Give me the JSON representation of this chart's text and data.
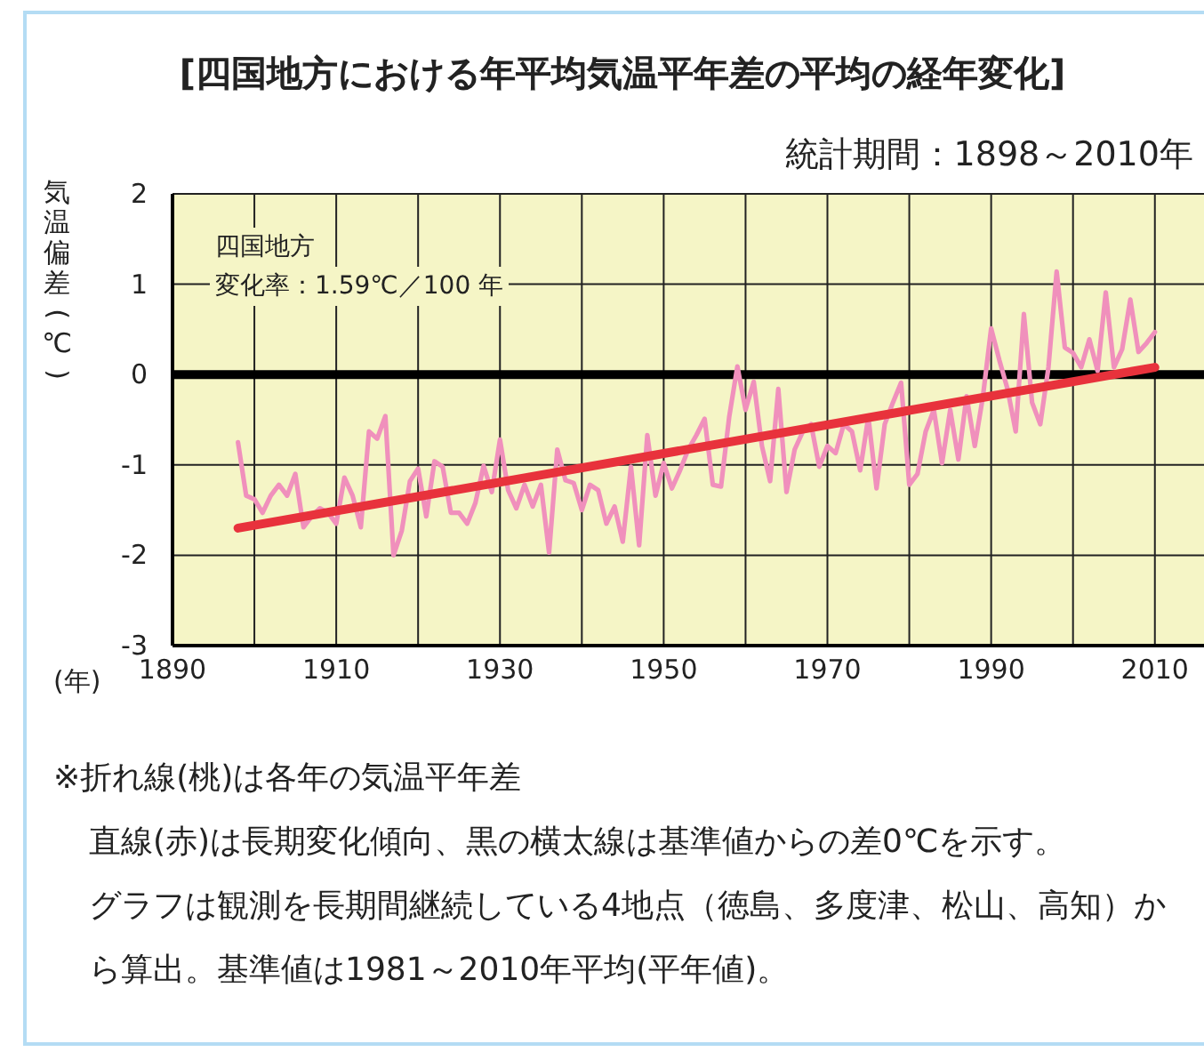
{
  "chart_data": {
    "type": "line",
    "title": "[四国地方における年平均気温平年差の平均の経年変化]",
    "subtitle": "統計期間：1898～2010年",
    "ylabel": "気温偏差(℃)",
    "xlabel": "(年)",
    "series": [
      {
        "color": "#f090bc",
        "x": [
          1898,
          1899,
          1900,
          1901,
          1902,
          1903,
          1904,
          1905,
          1906,
          1907,
          1908,
          1909,
          1910,
          1911,
          1912,
          1913,
          1914,
          1915,
          1916,
          1917,
          1918,
          1919,
          1920,
          1921,
          1922,
          1923,
          1924,
          1925,
          1926,
          1927,
          1928,
          1929,
          1930,
          1931,
          1932,
          1933,
          1934,
          1935,
          1936,
          1937,
          1938,
          1939,
          1940,
          1941,
          1942,
          1943,
          1944,
          1945,
          1946,
          1947,
          1948,
          1949,
          1950,
          1951,
          1952,
          1953,
          1954,
          1955,
          1956,
          1957,
          1958,
          1959,
          1960,
          1961,
          1962,
          1963,
          1964,
          1965,
          1966,
          1967,
          1968,
          1969,
          1970,
          1971,
          1972,
          1973,
          1974,
          1975,
          1976,
          1977,
          1978,
          1979,
          1980,
          1981,
          1982,
          1983,
          1984,
          1985,
          1986,
          1987,
          1988,
          1989,
          1990,
          1991,
          1992,
          1993,
          1994,
          1995,
          1996,
          1997,
          1998,
          1999,
          2000,
          2001,
          2002,
          2003,
          2004,
          2005,
          2006,
          2007,
          2008,
          2009,
          2010
        ],
        "values": [
          -0.75,
          -1.34,
          -1.38,
          -1.53,
          -1.34,
          -1.22,
          -1.34,
          -1.1,
          -1.69,
          -1.57,
          -1.48,
          -1.53,
          -1.65,
          -1.14,
          -1.34,
          -1.69,
          -0.63,
          -0.71,
          -0.46,
          -2.0,
          -1.73,
          -1.18,
          -1.04,
          -1.57,
          -0.96,
          -1.02,
          -1.53,
          -1.53,
          -1.65,
          -1.42,
          -1.01,
          -1.3,
          -0.72,
          -1.28,
          -1.48,
          -1.22,
          -1.46,
          -1.22,
          -1.97,
          -0.83,
          -1.17,
          -1.2,
          -1.5,
          -1.22,
          -1.28,
          -1.65,
          -1.46,
          -1.85,
          -1.02,
          -1.89,
          -0.67,
          -1.34,
          -0.98,
          -1.26,
          -1.06,
          -0.83,
          -0.67,
          -0.49,
          -1.22,
          -1.24,
          -0.47,
          0.09,
          -0.39,
          -0.08,
          -0.79,
          -1.18,
          -0.16,
          -1.3,
          -0.83,
          -0.63,
          -0.55,
          -1.02,
          -0.79,
          -0.87,
          -0.55,
          -0.63,
          -1.06,
          -0.47,
          -1.26,
          -0.55,
          -0.31,
          -0.09,
          -1.22,
          -1.1,
          -0.63,
          -0.39,
          -0.98,
          -0.39,
          -0.94,
          -0.24,
          -0.79,
          -0.24,
          0.51,
          0.16,
          -0.16,
          -0.63,
          0.67,
          -0.31,
          -0.55,
          0.08,
          1.14,
          0.3,
          0.24,
          0.08,
          0.39,
          0.04,
          0.91,
          0.08,
          0.28,
          0.83,
          0.25,
          0.35,
          0.47
        ]
      },
      {
        "color": "#e8323c",
        "x": [
          1898,
          2010
        ],
        "values": [
          -1.7,
          0.08
        ]
      }
    ],
    "xlim": [
      1890,
      2016
    ],
    "xticks": [
      1890,
      {
        "value": 1900,
        "label": null
      },
      1910,
      {
        "value": 1920,
        "label": null
      },
      1930,
      {
        "value": 1940,
        "label": null
      },
      1950,
      {
        "value": 1960,
        "label": null
      },
      1970,
      {
        "value": 1980,
        "label": null
      },
      1990,
      {
        "value": 2000,
        "label": null
      },
      2010
    ],
    "ylim": [
      -3,
      2
    ],
    "yticks": [
      -3,
      -2,
      -1,
      0,
      1,
      2
    ],
    "grid": true,
    "marker": "none",
    "line_style": "solid",
    "ref_lines": [
      {
        "axis": "y",
        "value": 0,
        "label": null,
        "color": "#000000"
      }
    ],
    "annotations": [
      "四国地方",
      "変化率：1.59℃／100 年",
      "※折れ線(桃)は各年の気温平年差",
      "直線(赤)は長期変化傾向、黒の横太線は基準値からの差0℃を示す。",
      "グラフは観測を長期間継続している4地点（徳島、多度津、松山、高知）から算出。基準値は1981～2010年平均(平年値)。"
    ]
  }
}
